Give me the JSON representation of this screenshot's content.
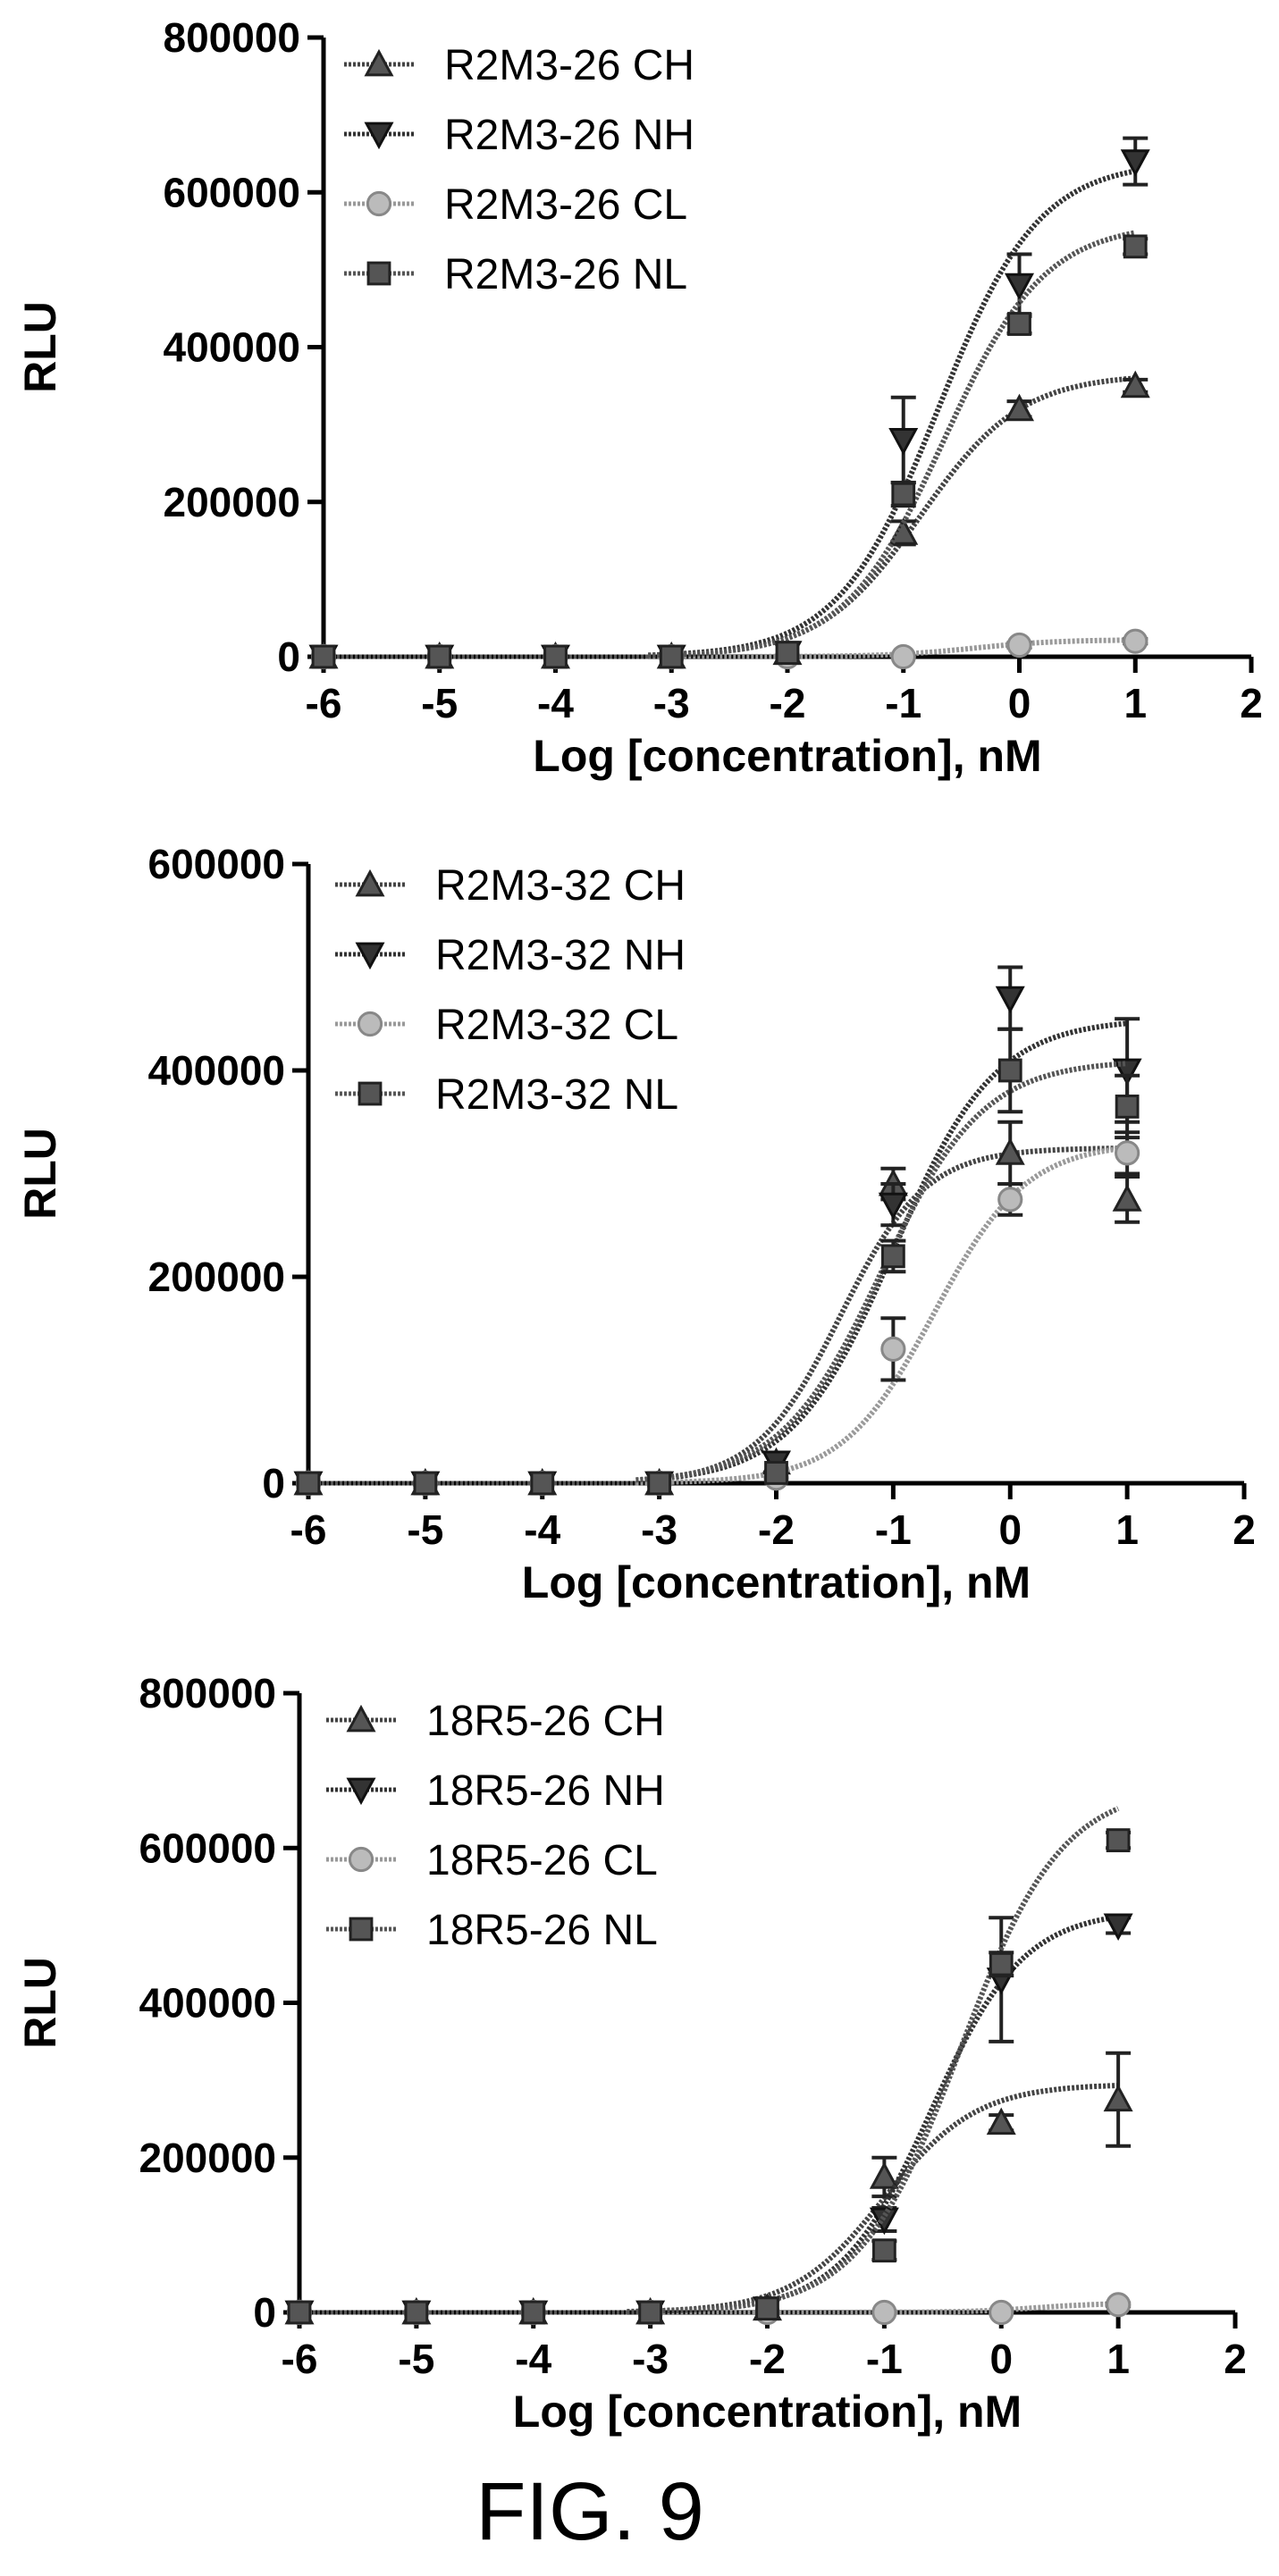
{
  "figure_caption": "FIG. 9",
  "chart_data": [
    {
      "type": "line",
      "xlabel": "Log [concentration], nM",
      "ylabel": "RLU",
      "xlim": [
        -6,
        2
      ],
      "ylim": [
        0,
        800000
      ],
      "xticks": [
        "-6",
        "-5",
        "-4",
        "-3",
        "-2",
        "-1",
        "0",
        "1",
        "2"
      ],
      "yticks": [
        "0",
        "200000",
        "400000",
        "600000",
        "800000"
      ],
      "legend_position": "top-left",
      "grid": false,
      "x": [
        -6,
        -5,
        -4,
        -3,
        -2,
        -1,
        0,
        1
      ],
      "series": [
        {
          "name": "R2M3-26 CH",
          "marker": "triangle-up",
          "color": "#444444",
          "values": [
            0,
            0,
            0,
            0,
            5000,
            160000,
            320000,
            350000
          ],
          "errors": [
            0,
            0,
            0,
            0,
            0,
            15000,
            10000,
            8000
          ],
          "curve": {
            "bottom": 0,
            "top": 365000,
            "logec50": -0.85,
            "hill": 1.0
          }
        },
        {
          "name": "R2M3-26 NH",
          "marker": "triangle-down",
          "color": "#333333",
          "values": [
            0,
            0,
            0,
            0,
            5000,
            280000,
            480000,
            640000
          ],
          "errors": [
            0,
            0,
            0,
            0,
            0,
            55000,
            40000,
            30000
          ],
          "curve": {
            "bottom": 0,
            "top": 640000,
            "logec50": -0.7,
            "hill": 1.0
          }
        },
        {
          "name": "R2M3-26 CL",
          "marker": "circle",
          "color": "#999999",
          "values": [
            0,
            0,
            0,
            0,
            0,
            0,
            15000,
            20000
          ],
          "errors": [
            0,
            0,
            0,
            0,
            0,
            0,
            3000,
            3000
          ],
          "curve": {
            "bottom": 0,
            "top": 22000,
            "logec50": -0.4,
            "hill": 1.2
          }
        },
        {
          "name": "R2M3-26 NL",
          "marker": "square",
          "color": "#555555",
          "values": [
            0,
            0,
            0,
            0,
            5000,
            210000,
            430000,
            530000
          ],
          "errors": [
            0,
            0,
            0,
            0,
            0,
            15000,
            12000,
            10000
          ],
          "curve": {
            "bottom": 0,
            "top": 560000,
            "logec50": -0.65,
            "hill": 1.0
          }
        }
      ]
    },
    {
      "type": "line",
      "xlabel": "Log [concentration], nM",
      "ylabel": "RLU",
      "xlim": [
        -6,
        2
      ],
      "ylim": [
        0,
        600000
      ],
      "xticks": [
        "-6",
        "-5",
        "-4",
        "-3",
        "-2",
        "-1",
        "0",
        "1",
        "2"
      ],
      "yticks": [
        "0",
        "200000",
        "400000",
        "600000"
      ],
      "legend_position": "top-left",
      "grid": false,
      "x": [
        -6,
        -5,
        -4,
        -3,
        -2,
        -1,
        0,
        1
      ],
      "series": [
        {
          "name": "R2M3-32 CH",
          "marker": "triangle-up",
          "color": "#444444",
          "values": [
            0,
            0,
            0,
            0,
            20000,
            290000,
            320000,
            275000
          ],
          "errors": [
            0,
            0,
            0,
            0,
            0,
            15000,
            30000,
            22000
          ],
          "curve": {
            "bottom": 0,
            "top": 325000,
            "logec50": -1.45,
            "hill": 1.2
          }
        },
        {
          "name": "R2M3-32 NH",
          "marker": "triangle-down",
          "color": "#333333",
          "values": [
            0,
            0,
            0,
            0,
            20000,
            270000,
            470000,
            400000
          ],
          "errors": [
            0,
            0,
            0,
            0,
            0,
            20000,
            30000,
            50000
          ],
          "curve": {
            "bottom": 0,
            "top": 450000,
            "logec50": -1.0,
            "hill": 1.0
          }
        },
        {
          "name": "R2M3-32 CL",
          "marker": "circle",
          "color": "#999999",
          "values": [
            0,
            0,
            0,
            0,
            5000,
            130000,
            275000,
            320000
          ],
          "errors": [
            0,
            0,
            0,
            0,
            0,
            30000,
            15000,
            20000
          ],
          "curve": {
            "bottom": 0,
            "top": 330000,
            "logec50": -0.65,
            "hill": 1.1
          }
        },
        {
          "name": "R2M3-32 NL",
          "marker": "square",
          "color": "#555555",
          "values": [
            0,
            0,
            0,
            0,
            10000,
            220000,
            400000,
            365000
          ],
          "errors": [
            0,
            0,
            0,
            0,
            0,
            15000,
            40000,
            30000
          ],
          "curve": {
            "bottom": 0,
            "top": 410000,
            "logec50": -1.1,
            "hill": 1.0
          }
        }
      ]
    },
    {
      "type": "line",
      "xlabel": "Log [concentration], nM",
      "ylabel": "RLU",
      "xlim": [
        -6,
        2
      ],
      "ylim": [
        0,
        800000
      ],
      "xticks": [
        "-6",
        "-5",
        "-4",
        "-3",
        "-2",
        "-1",
        "0",
        "1",
        "2"
      ],
      "yticks": [
        "0",
        "200000",
        "400000",
        "600000",
        "800000"
      ],
      "legend_position": "top-left",
      "grid": false,
      "x": [
        -6,
        -5,
        -4,
        -3,
        -2,
        -1,
        0,
        1
      ],
      "series": [
        {
          "name": "18R5-26 CH",
          "marker": "triangle-up",
          "color": "#444444",
          "values": [
            0,
            0,
            0,
            0,
            5000,
            175000,
            245000,
            275000
          ],
          "errors": [
            0,
            0,
            0,
            0,
            0,
            25000,
            10000,
            60000
          ],
          "curve": {
            "bottom": 0,
            "top": 295000,
            "logec50": -1.0,
            "hill": 1.1
          }
        },
        {
          "name": "18R5-26 NH",
          "marker": "triangle-down",
          "color": "#333333",
          "values": [
            0,
            0,
            0,
            0,
            5000,
            120000,
            430000,
            500000
          ],
          "errors": [
            0,
            0,
            0,
            0,
            0,
            15000,
            80000,
            10000
          ],
          "curve": {
            "bottom": 0,
            "top": 520000,
            "logec50": -0.6,
            "hill": 1.1
          }
        },
        {
          "name": "18R5-26 CL",
          "marker": "circle",
          "color": "#999999",
          "values": [
            0,
            0,
            0,
            0,
            0,
            0,
            0,
            10000
          ],
          "errors": [
            0,
            0,
            0,
            0,
            0,
            0,
            0,
            2000
          ],
          "curve": {
            "bottom": 0,
            "top": 12000,
            "logec50": 0.3,
            "hill": 1.5
          }
        },
        {
          "name": "18R5-26 NL",
          "marker": "square",
          "color": "#555555",
          "values": [
            0,
            0,
            0,
            0,
            5000,
            80000,
            450000,
            610000
          ],
          "errors": [
            0,
            0,
            0,
            0,
            0,
            12000,
            15000,
            10000
          ],
          "curve": {
            "bottom": 0,
            "top": 680000,
            "logec50": -0.35,
            "hill": 1.0
          }
        }
      ]
    }
  ]
}
